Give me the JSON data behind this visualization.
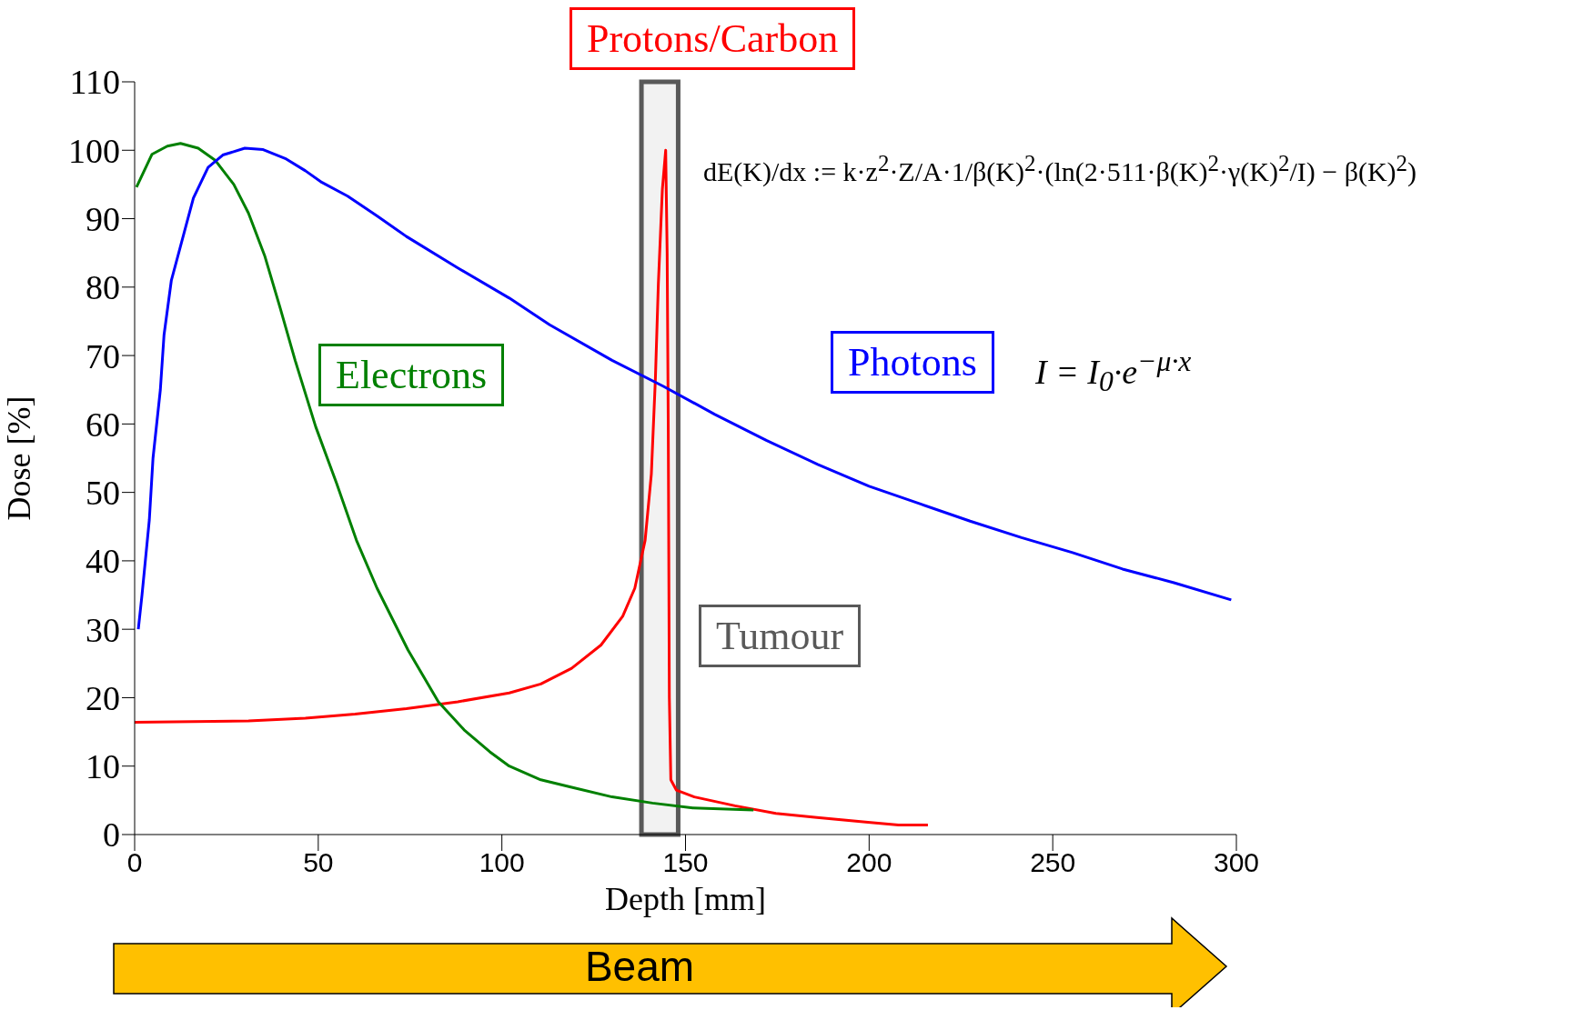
{
  "chart_data": {
    "type": "line",
    "xlabel": "Depth [mm]",
    "ylabel": "Dose [%]",
    "xlim": [
      0,
      300
    ],
    "xticks": [
      0,
      50,
      100,
      150,
      200,
      250,
      300
    ],
    "ylim": [
      0,
      110
    ],
    "yticks": [
      0,
      10,
      20,
      30,
      40,
      50,
      60,
      70,
      80,
      90,
      100,
      110
    ],
    "marker": "none",
    "line_style": "solid",
    "series": [
      {
        "name": "Protons/Carbon",
        "color": "#ff0000",
        "x": [
          0,
          31,
          46.5,
          60,
          74,
          88,
          102,
          110.6,
          119,
          127,
          132.9,
          136.2,
          139,
          140.7,
          141.8,
          142.6,
          143.7,
          144.6,
          145.0,
          145.3,
          145.6,
          146.0,
          147.5,
          152.4,
          163.5,
          174.6,
          185.8,
          199.7,
          208,
          216
        ],
        "values": [
          16.4,
          16.6,
          17,
          17.6,
          18.4,
          19.4,
          20.7,
          22,
          24.3,
          27.7,
          31.9,
          36,
          43,
          52.7,
          66.6,
          80.4,
          94.3,
          100,
          85,
          60,
          20,
          8,
          6.5,
          5.5,
          4.2,
          3.1,
          2.5,
          1.8,
          1.4,
          1.4
        ]
      },
      {
        "name": "Electrons",
        "color": "#008000",
        "x": [
          0.5,
          4.7,
          8.9,
          12.5,
          17.3,
          22,
          27,
          31,
          35.4,
          39.6,
          43.7,
          49.3,
          55,
          60.4,
          66,
          74.4,
          82.7,
          89.7,
          96.7,
          102,
          110.6,
          119,
          130,
          141,
          152,
          168.5
        ],
        "values": [
          94.6,
          99.4,
          100.6,
          101,
          100.3,
          98.5,
          95,
          90.8,
          84.6,
          77,
          69.3,
          59.6,
          51.3,
          43,
          36,
          27,
          19.4,
          15.3,
          12.1,
          10,
          8,
          6.9,
          5.5,
          4.6,
          3.9,
          3.6
        ]
      },
      {
        "name": "Photons",
        "color": "#0000ff",
        "x": [
          1,
          2,
          4,
          5,
          7,
          8,
          10,
          13,
          16,
          20,
          24,
          30,
          35,
          41,
          46.5,
          51,
          58,
          66,
          74,
          88,
          102,
          113,
          130,
          144,
          158,
          172,
          186,
          200,
          214,
          227.5,
          241.5,
          255.4,
          269,
          283,
          298.6
        ],
        "values": [
          30,
          35,
          46,
          55,
          65,
          73,
          81,
          87,
          93,
          97.5,
          99.3,
          100.3,
          100.1,
          98.8,
          97,
          95.3,
          93.3,
          90.4,
          87.4,
          82.8,
          78.4,
          74.5,
          69.3,
          65.5,
          61.4,
          57.6,
          54.1,
          50.9,
          48.3,
          45.8,
          43.4,
          41.2,
          38.8,
          36.8,
          34.3
        ]
      }
    ],
    "bands": [
      {
        "axis": "x",
        "from": 138,
        "to": 148,
        "label": "Tumour",
        "color": "#595959"
      }
    ],
    "annotations": [
      "dE(K)/dx := k·z$^{2}$·Z/A·1/β(K)$^{2}$·(ln(2·511·β(K)$^{2}$·γ(K)$^{2}$/I) − β(K)$^{2}$)",
      "I = I$_{0}$·e$^{−μ·x}$",
      "Beam"
    ]
  }
}
